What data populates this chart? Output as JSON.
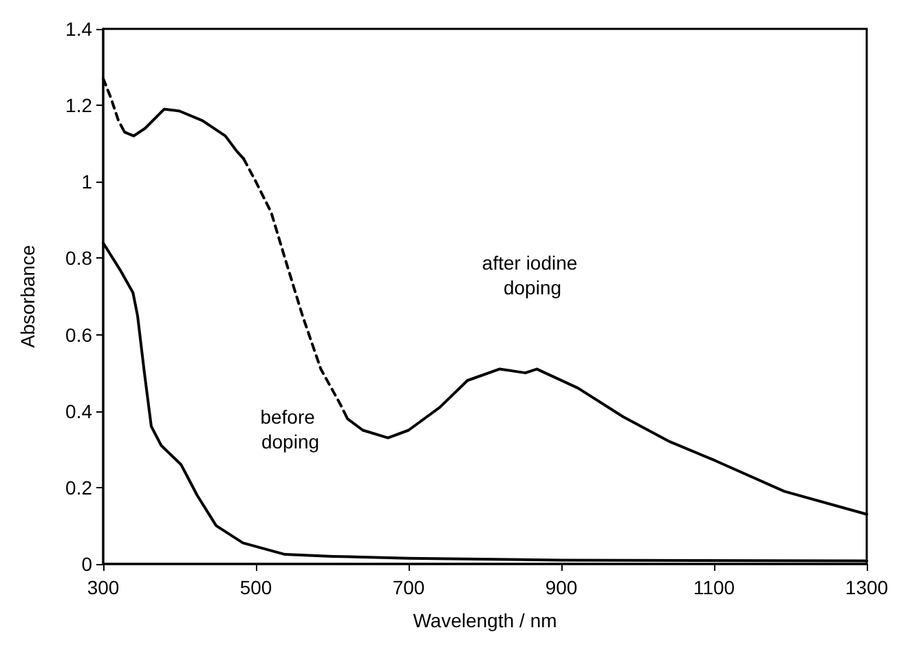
{
  "chart_data": {
    "type": "line",
    "xlabel": "Wavelength / nm",
    "ylabel": "Absorbance",
    "xlim": [
      300,
      1300
    ],
    "xticks": [
      300,
      500,
      700,
      900,
      1100,
      1300
    ],
    "ylim": [
      0,
      1.4
    ],
    "yticks": [
      0,
      0.2,
      0.4,
      0.6,
      0.8,
      1,
      1.2,
      1.4
    ],
    "grid": false,
    "marker": "none",
    "annotations": [
      "after iodine doping",
      "before doping"
    ],
    "series": [
      {
        "color": "#000000",
        "line_style": "dashed",
        "x": [
          300,
          310,
          320,
          328
        ],
        "values": [
          1.27,
          1.22,
          1.16,
          1.13
        ]
      },
      {
        "color": "#000000",
        "line_style": "solid",
        "x": [
          328,
          340,
          355,
          380,
          400,
          430,
          460,
          475,
          484
        ],
        "values": [
          1.13,
          1.12,
          1.14,
          1.19,
          1.185,
          1.16,
          1.12,
          1.08,
          1.06
        ]
      },
      {
        "color": "#000000",
        "line_style": "dashed",
        "x": [
          484,
          500,
          520,
          538,
          561,
          585,
          610,
          620
        ],
        "values": [
          1.06,
          1.0,
          0.92,
          0.8,
          0.65,
          0.51,
          0.42,
          0.38
        ]
      },
      {
        "color": "#000000",
        "line_style": "solid",
        "x": [
          620,
          640,
          673,
          700,
          741,
          777,
          819,
          853,
          868,
          922,
          981,
          1042,
          1102,
          1192,
          1300
        ],
        "values": [
          0.38,
          0.35,
          0.33,
          0.35,
          0.41,
          0.48,
          0.51,
          0.5,
          0.51,
          0.46,
          0.385,
          0.32,
          0.27,
          0.19,
          0.13
        ]
      },
      {
        "color": "#000000",
        "line_style": "solid",
        "x": [
          300,
          322,
          339,
          345,
          354,
          363,
          376,
          402,
          423,
          448,
          483,
          538,
          600,
          700,
          900,
          1300
        ],
        "values": [
          0.84,
          0.77,
          0.71,
          0.65,
          0.5,
          0.36,
          0.31,
          0.26,
          0.18,
          0.1,
          0.055,
          0.025,
          0.02,
          0.015,
          0.01,
          0.008
        ]
      }
    ]
  }
}
